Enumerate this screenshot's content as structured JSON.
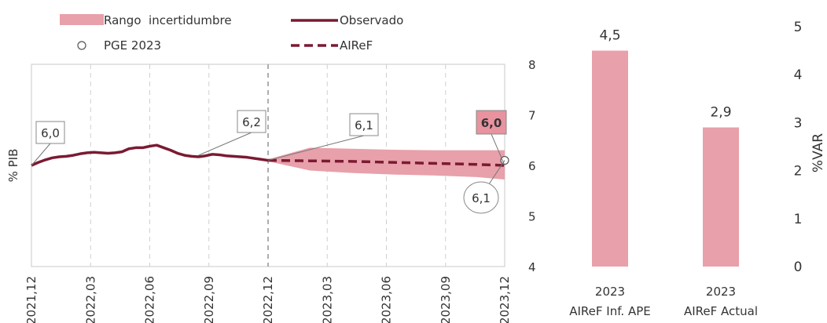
{
  "chart_data": [
    {
      "type": "line",
      "ylabel": "% PIB",
      "ylim": [
        4,
        8
      ],
      "y_ticks": [
        "4",
        "5",
        "6",
        "7",
        "8"
      ],
      "y_axis_side": "right",
      "x_ticks": [
        "2021,12",
        "2022,03",
        "2022,06",
        "2022,09",
        "2022,12",
        "2023,03",
        "2023,06",
        "2023,09",
        "2023,12"
      ],
      "grid": "vertical dashed",
      "legend": {
        "band": "Rango  incertidumbre",
        "observed": "Observado",
        "pge": "PGE 2023",
        "forecast": "AIReF"
      },
      "series": [
        {
          "name": "Observado",
          "x": [
            0,
            0.5,
            1,
            1.5,
            2,
            2.5,
            3,
            3.5,
            4,
            4.5,
            5,
            5.5,
            6,
            6.5,
            7,
            7.5,
            8,
            8.5,
            9,
            9.5,
            10,
            10.5,
            11,
            11.5,
            12,
            12.5,
            13,
            13.5,
            14,
            14.5,
            15,
            15.5,
            16,
            16.5,
            17
          ],
          "values": [
            6.0,
            6.06,
            6.11,
            6.15,
            6.17,
            6.18,
            6.2,
            6.23,
            6.25,
            6.26,
            6.25,
            6.24,
            6.25,
            6.27,
            6.33,
            6.35,
            6.35,
            6.38,
            6.4,
            6.35,
            6.3,
            6.24,
            6.2,
            6.18,
            6.17,
            6.19,
            6.22,
            6.21,
            6.19,
            6.18,
            6.17,
            6.16,
            6.14,
            6.12,
            6.1
          ]
        },
        {
          "name": "AIReF",
          "x": [
            17,
            20,
            23,
            26,
            29,
            32,
            34
          ],
          "values": [
            6.1,
            6.09,
            6.08,
            6.06,
            6.04,
            6.02,
            6.0
          ]
        }
      ],
      "band": {
        "name": "Rango  incertidumbre",
        "x": [
          17,
          20,
          23,
          26,
          29,
          32,
          34
        ],
        "upper": [
          6.12,
          6.35,
          6.33,
          6.31,
          6.3,
          6.3,
          6.3
        ],
        "lower": [
          6.08,
          5.9,
          5.85,
          5.82,
          5.8,
          5.77,
          5.72
        ]
      },
      "pge_point": {
        "x": 34,
        "value": 6.1
      },
      "annotations": [
        {
          "text": "6,0",
          "x": 0,
          "value": 6.0,
          "style": "box"
        },
        {
          "text": "6,2",
          "x": 12,
          "value": 6.2,
          "style": "box"
        },
        {
          "text": "6,1",
          "x": 17,
          "value": 6.1,
          "style": "box"
        },
        {
          "text": "6,0",
          "x": 34,
          "value": 6.0,
          "style": "box-highlight"
        },
        {
          "text": "6,1",
          "x": 34,
          "value": 6.1,
          "style": "ellipse"
        }
      ],
      "colors": {
        "observed": "#7b1a33",
        "band": "#e8a0aa",
        "highlight_box": "#e8939f"
      }
    },
    {
      "type": "bar",
      "ylabel": "%VAR",
      "ylim": [
        0,
        5
      ],
      "y_ticks": [
        "0",
        "1",
        "2",
        "3",
        "4",
        "5"
      ],
      "categories": [
        "2023",
        "2023"
      ],
      "category_sublabels": [
        "AIReF Inf. APE",
        "AIReF Actual"
      ],
      "values": [
        4.5,
        2.9
      ],
      "value_labels": [
        "4,5",
        "2,9"
      ],
      "colors": {
        "bar": "#e8a0aa"
      }
    }
  ]
}
